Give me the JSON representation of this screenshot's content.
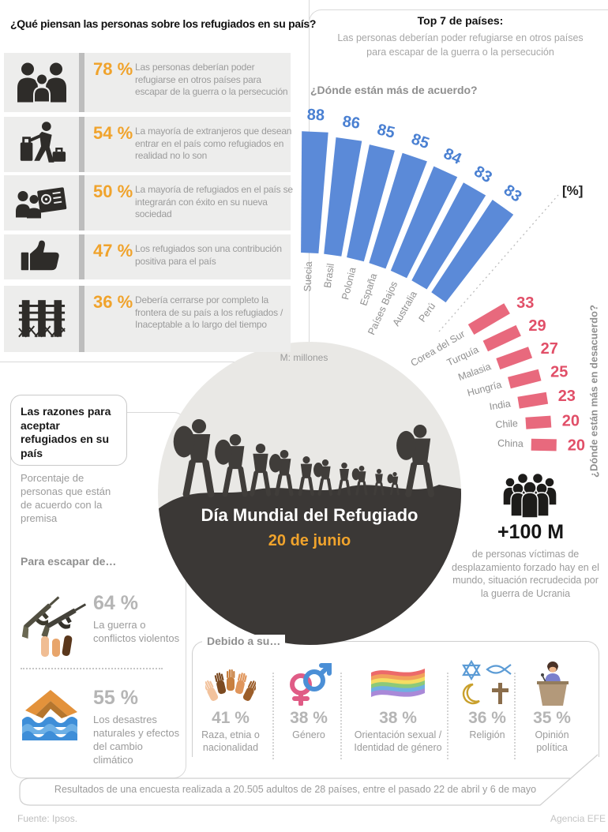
{
  "colors": {
    "accent_orange": "#f0a32c",
    "bar_blue": "#5b8ad8",
    "bar_blue_text": "#4a80d2",
    "bar_pink": "#e8697d",
    "bar_pink_text": "#e14f68",
    "gray_text": "#9b9b9b",
    "dark_circle": "#3b3836",
    "big_percent_gray": "#b5b5b5"
  },
  "header_left": {
    "title": "¿Qué piensan las personas sobre los refugiados en su país?"
  },
  "beliefs": {
    "items": [
      {
        "icon": "family-icon",
        "percent": "78 %",
        "text": "Las personas deberían poder refugiarse en otros países para escapar de la guerra o la persecución"
      },
      {
        "icon": "traveler-icon",
        "percent": "54 %",
        "text": "La mayoría de extranjeros que desean entrar en el país como refugiados en realidad no lo son"
      },
      {
        "icon": "passport-group-icon",
        "percent": "50 %",
        "text": "La mayoría de refugiados en el país se integrarán con éxito en su nueva sociedad"
      },
      {
        "icon": "thumbs-up-icon",
        "percent": "47 %",
        "text": "Los refugiados son una contribución positiva para el país"
      },
      {
        "icon": "border-fence-icon",
        "percent": "36 %",
        "text": "Debería cerrarse por completo la frontera de su país a los refugiados / Inaceptable a lo largo del tiempo"
      }
    ]
  },
  "top7": {
    "title": "Top 7 de países:",
    "subtitle": "Las personas deberían poder refugiarse en otros países para escapar de la guerra o la persecución",
    "agree_question": "¿Dónde están más de acuerdo?",
    "disagree_question": "¿Dónde están más en desacuerdo?",
    "unit_label": "[%]"
  },
  "chart_data": [
    {
      "type": "bar",
      "name": "donde-mas-de-acuerdo",
      "layout": "fan",
      "categories": [
        "Suecia",
        "Brasil",
        "Polonia",
        "España",
        "Países Bajos",
        "Australia",
        "Perú"
      ],
      "values": [
        88,
        86,
        85,
        85,
        84,
        83,
        83
      ],
      "unit": "%",
      "color": "#5b8ad8",
      "value_color": "#4a80d2",
      "label_color": "#8f8f8f"
    },
    {
      "type": "bar",
      "name": "donde-mas-en-desacuerdo",
      "layout": "fan",
      "categories": [
        "Corea del Sur",
        "Turquía",
        "Malasia",
        "Hungría",
        "India",
        "Chile",
        "China"
      ],
      "values": [
        33,
        29,
        27,
        25,
        23,
        20,
        20
      ],
      "unit": "%",
      "color": "#e8697d",
      "value_color": "#e14f68",
      "label_color": "#8f8f8f"
    }
  ],
  "center": {
    "note": "M: millones",
    "title": "Día Mundial del Refugiado",
    "date": "20 de junio"
  },
  "displaced": {
    "value": "+100 M",
    "text": "de personas víctimas de desplazamiento forzado hay en el mundo, situación recrudecida por la guerra de Ucrania"
  },
  "reasons": {
    "title": "Las razones para aceptar refugiados en su país",
    "subtitle": "Porcentaje de personas que están de acuerdo con la premisa",
    "escape_header": "Para escapar de…",
    "items": [
      {
        "icon": "rifles-icon",
        "percent": "64 %",
        "text": "La guerra o conflictos violentos"
      },
      {
        "icon": "flood-icon",
        "percent": "55 %",
        "text": "Los desastres naturales y efectos del cambio climático"
      }
    ]
  },
  "due": {
    "header": "Debido a su…",
    "items": [
      {
        "icon": "raised-hands-icon",
        "percent": "41 %",
        "text": "Raza, etnia o nacionalidad"
      },
      {
        "icon": "gender-symbols-icon",
        "percent": "38 %",
        "text": "Género"
      },
      {
        "icon": "rainbow-flag-icon",
        "percent": "38 %",
        "text": "Orientación sexual / Identidad de género"
      },
      {
        "icon": "religions-icon",
        "percent": "36 %",
        "text": "Religión"
      },
      {
        "icon": "podium-icon",
        "percent": "35 %",
        "text": "Opinión política"
      }
    ]
  },
  "footer": {
    "survey": "Resultados de una encuesta realizada a 20.505 adultos de 28 países, entre el pasado 22 de abril y 6 de mayo",
    "source": "Fuente: Ipsos.",
    "agency": "Agencia EFE"
  }
}
